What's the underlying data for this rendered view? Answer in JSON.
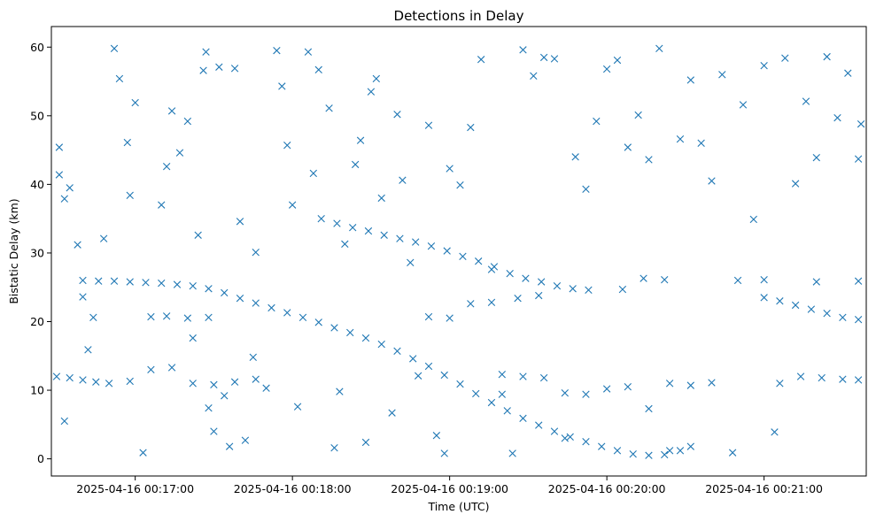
{
  "chart_data": {
    "type": "scatter",
    "title": "Detections in Delay",
    "xlabel": "Time (UTC)",
    "ylabel": "Bistatic Delay (km)",
    "x_axis_type": "time",
    "x_ticks": [
      "2025-04-16 00:17:00",
      "2025-04-16 00:18:00",
      "2025-04-16 00:19:00",
      "2025-04-16 00:20:00",
      "2025-04-16 00:21:00"
    ],
    "y_ticks": [
      0,
      10,
      20,
      30,
      40,
      50,
      60
    ],
    "xlim": [
      "2025-04-16 00:16:28",
      "2025-04-16 00:21:39"
    ],
    "ylim": [
      -2.5,
      63
    ],
    "marker": "x",
    "color": "#1f77b4",
    "grid": false,
    "series": [
      {
        "name": "",
        "points": [
          [
            "2025-04-16 00:16:40",
            26.0
          ],
          [
            "2025-04-16 00:16:46",
            25.9
          ],
          [
            "2025-04-16 00:16:52",
            25.9
          ],
          [
            "2025-04-16 00:16:58",
            25.8
          ],
          [
            "2025-04-16 00:17:04",
            25.7
          ],
          [
            "2025-04-16 00:17:10",
            25.6
          ],
          [
            "2025-04-16 00:17:16",
            25.4
          ],
          [
            "2025-04-16 00:17:22",
            25.2
          ],
          [
            "2025-04-16 00:17:28",
            24.8
          ],
          [
            "2025-04-16 00:17:34",
            24.2
          ],
          [
            "2025-04-16 00:17:40",
            23.4
          ],
          [
            "2025-04-16 00:17:46",
            22.7
          ],
          [
            "2025-04-16 00:17:52",
            22.0
          ],
          [
            "2025-04-16 00:17:58",
            21.3
          ],
          [
            "2025-04-16 00:18:04",
            20.6
          ],
          [
            "2025-04-16 00:18:10",
            19.9
          ],
          [
            "2025-04-16 00:18:16",
            19.1
          ],
          [
            "2025-04-16 00:18:22",
            18.4
          ],
          [
            "2025-04-16 00:18:28",
            17.6
          ],
          [
            "2025-04-16 00:18:34",
            16.7
          ],
          [
            "2025-04-16 00:18:40",
            15.7
          ],
          [
            "2025-04-16 00:18:46",
            14.6
          ],
          [
            "2025-04-16 00:18:52",
            13.5
          ],
          [
            "2025-04-16 00:18:58",
            12.2
          ],
          [
            "2025-04-16 00:19:04",
            10.9
          ],
          [
            "2025-04-16 00:19:10",
            9.5
          ],
          [
            "2025-04-16 00:19:16",
            8.2
          ],
          [
            "2025-04-16 00:19:22",
            7.0
          ],
          [
            "2025-04-16 00:19:28",
            5.9
          ],
          [
            "2025-04-16 00:19:34",
            4.9
          ],
          [
            "2025-04-16 00:19:40",
            4.0
          ],
          [
            "2025-04-16 00:19:46",
            3.2
          ],
          [
            "2025-04-16 00:19:52",
            2.5
          ],
          [
            "2025-04-16 00:19:58",
            1.8
          ],
          [
            "2025-04-16 00:20:04",
            1.2
          ],
          [
            "2025-04-16 00:20:10",
            0.7
          ],
          [
            "2025-04-16 00:20:16",
            0.5
          ],
          [
            "2025-04-16 00:20:22",
            0.6
          ],
          [
            "2025-04-16 00:20:28",
            1.2
          ],
          [
            "2025-04-16 00:20:32",
            1.8
          ],
          [
            "2025-04-16 00:18:11",
            35.0
          ],
          [
            "2025-04-16 00:18:17",
            34.3
          ],
          [
            "2025-04-16 00:18:23",
            33.7
          ],
          [
            "2025-04-16 00:18:29",
            33.2
          ],
          [
            "2025-04-16 00:18:35",
            32.6
          ],
          [
            "2025-04-16 00:18:41",
            32.1
          ],
          [
            "2025-04-16 00:18:47",
            31.6
          ],
          [
            "2025-04-16 00:18:53",
            31.0
          ],
          [
            "2025-04-16 00:18:59",
            30.3
          ],
          [
            "2025-04-16 00:19:05",
            29.5
          ],
          [
            "2025-04-16 00:19:11",
            28.8
          ],
          [
            "2025-04-16 00:19:17",
            28.0
          ],
          [
            "2025-04-16 00:19:23",
            27.0
          ],
          [
            "2025-04-16 00:19:29",
            26.3
          ],
          [
            "2025-04-16 00:19:35",
            25.8
          ],
          [
            "2025-04-16 00:19:41",
            25.2
          ],
          [
            "2025-04-16 00:19:47",
            24.8
          ],
          [
            "2025-04-16 00:19:53",
            24.6
          ],
          [
            "2025-04-16 00:21:00",
            23.5
          ],
          [
            "2025-04-16 00:21:06",
            23.0
          ],
          [
            "2025-04-16 00:21:12",
            22.4
          ],
          [
            "2025-04-16 00:21:18",
            21.8
          ],
          [
            "2025-04-16 00:21:24",
            21.2
          ],
          [
            "2025-04-16 00:21:30",
            20.6
          ],
          [
            "2025-04-16 00:21:36",
            20.3
          ],
          [
            "2025-04-16 00:16:30",
            12.0
          ],
          [
            "2025-04-16 00:16:35",
            11.8
          ],
          [
            "2025-04-16 00:16:40",
            11.5
          ],
          [
            "2025-04-16 00:16:45",
            11.2
          ],
          [
            "2025-04-16 00:16:50",
            11.0
          ],
          [
            "2025-04-16 00:16:58",
            11.3
          ],
          [
            "2025-04-16 00:17:06",
            13.0
          ],
          [
            "2025-04-16 00:17:14",
            13.3
          ],
          [
            "2025-04-16 00:17:22",
            11.0
          ],
          [
            "2025-04-16 00:17:30",
            10.8
          ],
          [
            "2025-04-16 00:17:38",
            11.2
          ],
          [
            "2025-04-16 00:17:46",
            11.6
          ],
          [
            "2025-04-16 00:19:20",
            12.3
          ],
          [
            "2025-04-16 00:19:28",
            12.0
          ],
          [
            "2025-04-16 00:19:36",
            11.8
          ],
          [
            "2025-04-16 00:19:44",
            9.6
          ],
          [
            "2025-04-16 00:19:52",
            9.4
          ],
          [
            "2025-04-16 00:20:00",
            10.2
          ],
          [
            "2025-04-16 00:20:08",
            10.5
          ],
          [
            "2025-04-16 00:20:16",
            7.3
          ],
          [
            "2025-04-16 00:20:24",
            11.0
          ],
          [
            "2025-04-16 00:20:32",
            10.7
          ],
          [
            "2025-04-16 00:20:40",
            11.1
          ],
          [
            "2025-04-16 00:21:06",
            11.0
          ],
          [
            "2025-04-16 00:21:14",
            12.0
          ],
          [
            "2025-04-16 00:21:22",
            11.8
          ],
          [
            "2025-04-16 00:21:30",
            11.6
          ],
          [
            "2025-04-16 00:21:36",
            11.5
          ],
          [
            "2025-04-16 00:17:12",
            20.8
          ],
          [
            "2025-04-16 00:17:20",
            20.5
          ],
          [
            "2025-04-16 00:17:28",
            20.6
          ],
          [
            "2025-04-16 00:18:52",
            20.7
          ],
          [
            "2025-04-16 00:19:00",
            20.5
          ],
          [
            "2025-04-16 00:19:08",
            22.6
          ],
          [
            "2025-04-16 00:19:16",
            22.8
          ],
          [
            "2025-04-16 00:19:26",
            23.4
          ],
          [
            "2025-04-16 00:19:34",
            23.8
          ],
          [
            "2025-04-16 00:20:06",
            24.7
          ],
          [
            "2025-04-16 00:20:14",
            26.3
          ],
          [
            "2025-04-16 00:20:22",
            26.1
          ],
          [
            "2025-04-16 00:20:50",
            26.0
          ],
          [
            "2025-04-16 00:21:00",
            26.1
          ],
          [
            "2025-04-16 00:21:20",
            25.8
          ],
          [
            "2025-04-16 00:21:36",
            25.9
          ],
          [
            "2025-04-16 00:16:31",
            45.4
          ],
          [
            "2025-04-16 00:16:31",
            41.4
          ],
          [
            "2025-04-16 00:16:33",
            37.9
          ],
          [
            "2025-04-16 00:16:35",
            39.5
          ],
          [
            "2025-04-16 00:16:38",
            31.2
          ],
          [
            "2025-04-16 00:16:40",
            23.6
          ],
          [
            "2025-04-16 00:16:42",
            15.9
          ],
          [
            "2025-04-16 00:16:44",
            20.6
          ],
          [
            "2025-04-16 00:16:33",
            5.5
          ],
          [
            "2025-04-16 00:16:48",
            32.1
          ],
          [
            "2025-04-16 00:16:52",
            59.8
          ],
          [
            "2025-04-16 00:16:54",
            55.4
          ],
          [
            "2025-04-16 00:16:57",
            46.1
          ],
          [
            "2025-04-16 00:17:00",
            51.9
          ],
          [
            "2025-04-16 00:16:58",
            38.4
          ],
          [
            "2025-04-16 00:17:03",
            0.9
          ],
          [
            "2025-04-16 00:17:06",
            20.7
          ],
          [
            "2025-04-16 00:17:10",
            37.0
          ],
          [
            "2025-04-16 00:17:12",
            42.6
          ],
          [
            "2025-04-16 00:17:14",
            50.7
          ],
          [
            "2025-04-16 00:17:17",
            44.6
          ],
          [
            "2025-04-16 00:17:20",
            49.2
          ],
          [
            "2025-04-16 00:17:22",
            17.6
          ],
          [
            "2025-04-16 00:17:24",
            32.6
          ],
          [
            "2025-04-16 00:17:26",
            56.6
          ],
          [
            "2025-04-16 00:17:27",
            59.3
          ],
          [
            "2025-04-16 00:17:28",
            7.4
          ],
          [
            "2025-04-16 00:17:30",
            4.0
          ],
          [
            "2025-04-16 00:17:32",
            57.1
          ],
          [
            "2025-04-16 00:17:34",
            9.2
          ],
          [
            "2025-04-16 00:17:36",
            1.8
          ],
          [
            "2025-04-16 00:17:38",
            56.9
          ],
          [
            "2025-04-16 00:17:40",
            34.6
          ],
          [
            "2025-04-16 00:17:42",
            2.7
          ],
          [
            "2025-04-16 00:17:45",
            14.8
          ],
          [
            "2025-04-16 00:17:46",
            30.1
          ],
          [
            "2025-04-16 00:17:50",
            10.3
          ],
          [
            "2025-04-16 00:17:54",
            59.5
          ],
          [
            "2025-04-16 00:17:56",
            54.3
          ],
          [
            "2025-04-16 00:17:58",
            45.7
          ],
          [
            "2025-04-16 00:18:00",
            37.0
          ],
          [
            "2025-04-16 00:18:02",
            7.6
          ],
          [
            "2025-04-16 00:18:06",
            59.3
          ],
          [
            "2025-04-16 00:18:08",
            41.6
          ],
          [
            "2025-04-16 00:18:10",
            56.7
          ],
          [
            "2025-04-16 00:18:14",
            51.1
          ],
          [
            "2025-04-16 00:18:16",
            1.6
          ],
          [
            "2025-04-16 00:18:18",
            9.8
          ],
          [
            "2025-04-16 00:18:20",
            31.3
          ],
          [
            "2025-04-16 00:18:24",
            42.9
          ],
          [
            "2025-04-16 00:18:26",
            46.4
          ],
          [
            "2025-04-16 00:18:28",
            2.4
          ],
          [
            "2025-04-16 00:18:30",
            53.5
          ],
          [
            "2025-04-16 00:18:32",
            55.4
          ],
          [
            "2025-04-16 00:18:34",
            38.0
          ],
          [
            "2025-04-16 00:18:38",
            6.7
          ],
          [
            "2025-04-16 00:18:40",
            50.2
          ],
          [
            "2025-04-16 00:18:42",
            40.6
          ],
          [
            "2025-04-16 00:18:45",
            28.6
          ],
          [
            "2025-04-16 00:18:48",
            12.1
          ],
          [
            "2025-04-16 00:18:52",
            48.6
          ],
          [
            "2025-04-16 00:18:55",
            3.4
          ],
          [
            "2025-04-16 00:18:58",
            0.8
          ],
          [
            "2025-04-16 00:19:00",
            42.3
          ],
          [
            "2025-04-16 00:19:04",
            39.9
          ],
          [
            "2025-04-16 00:19:08",
            48.3
          ],
          [
            "2025-04-16 00:19:12",
            58.2
          ],
          [
            "2025-04-16 00:19:16",
            27.6
          ],
          [
            "2025-04-16 00:19:20",
            9.4
          ],
          [
            "2025-04-16 00:19:24",
            0.8
          ],
          [
            "2025-04-16 00:19:28",
            59.6
          ],
          [
            "2025-04-16 00:19:32",
            55.8
          ],
          [
            "2025-04-16 00:19:36",
            58.5
          ],
          [
            "2025-04-16 00:19:40",
            58.3
          ],
          [
            "2025-04-16 00:19:44",
            3.0
          ],
          [
            "2025-04-16 00:19:48",
            44.0
          ],
          [
            "2025-04-16 00:19:52",
            39.3
          ],
          [
            "2025-04-16 00:19:56",
            49.2
          ],
          [
            "2025-04-16 00:20:00",
            56.8
          ],
          [
            "2025-04-16 00:20:04",
            58.1
          ],
          [
            "2025-04-16 00:20:08",
            45.4
          ],
          [
            "2025-04-16 00:20:12",
            50.1
          ],
          [
            "2025-04-16 00:20:16",
            43.6
          ],
          [
            "2025-04-16 00:20:20",
            59.8
          ],
          [
            "2025-04-16 00:20:24",
            1.2
          ],
          [
            "2025-04-16 00:20:28",
            46.6
          ],
          [
            "2025-04-16 00:20:32",
            55.2
          ],
          [
            "2025-04-16 00:20:36",
            46.0
          ],
          [
            "2025-04-16 00:20:40",
            40.5
          ],
          [
            "2025-04-16 00:20:44",
            56.0
          ],
          [
            "2025-04-16 00:20:48",
            0.9
          ],
          [
            "2025-04-16 00:20:52",
            51.6
          ],
          [
            "2025-04-16 00:20:56",
            34.9
          ],
          [
            "2025-04-16 00:21:00",
            57.3
          ],
          [
            "2025-04-16 00:21:04",
            3.9
          ],
          [
            "2025-04-16 00:21:08",
            58.4
          ],
          [
            "2025-04-16 00:21:12",
            40.1
          ],
          [
            "2025-04-16 00:21:16",
            52.1
          ],
          [
            "2025-04-16 00:21:20",
            43.9
          ],
          [
            "2025-04-16 00:21:24",
            58.6
          ],
          [
            "2025-04-16 00:21:28",
            49.7
          ],
          [
            "2025-04-16 00:21:32",
            56.2
          ],
          [
            "2025-04-16 00:21:36",
            43.7
          ],
          [
            "2025-04-16 00:21:37",
            48.8
          ]
        ]
      }
    ]
  }
}
